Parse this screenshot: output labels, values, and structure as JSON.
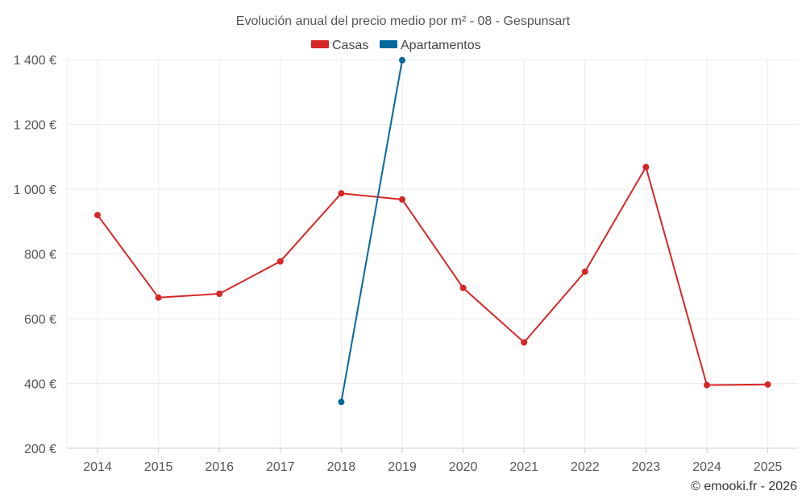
{
  "chart_data": {
    "type": "line",
    "title": "Evolución anual del precio medio por m² - 08 - Gespunsart",
    "categories": [
      "2014",
      "2015",
      "2016",
      "2017",
      "2018",
      "2019",
      "2020",
      "2021",
      "2022",
      "2023",
      "2024",
      "2025"
    ],
    "series": [
      {
        "name": "Casas",
        "color": "#d62728",
        "values": [
          920,
          665,
          677,
          777,
          987,
          968,
          695,
          527,
          745,
          1068,
          395,
          397
        ]
      },
      {
        "name": "Apartamentos",
        "color": "#05679b",
        "values": [
          null,
          null,
          null,
          null,
          343,
          1398,
          null,
          null,
          null,
          null,
          null,
          null
        ]
      }
    ],
    "ylim": [
      200,
      1400
    ],
    "yticks": [
      200,
      400,
      600,
      800,
      1000,
      1200,
      1400
    ],
    "ytick_labels": [
      "200 €",
      "400 €",
      "600 €",
      "800 €",
      "1 000 €",
      "1 200 €",
      "1 400 €"
    ],
    "xlabel": "",
    "ylabel": "",
    "grid": true,
    "legend": "top-center"
  },
  "credit": "© emooki.fr - 2026"
}
